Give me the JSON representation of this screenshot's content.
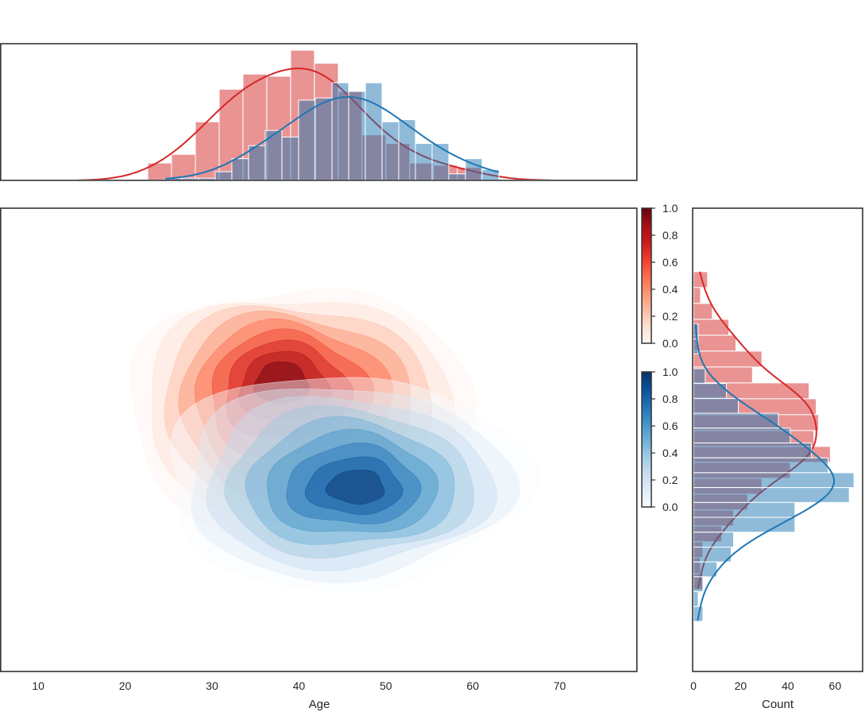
{
  "chart_data": {
    "type": "joint-kde-histogram",
    "main": {
      "xlabel": "Age",
      "ylabel": "",
      "xlim": [
        5.6,
        78.9
      ],
      "ylim": [
        0,
        100
      ],
      "xticks": [
        "10",
        "20",
        "30",
        "40",
        "50",
        "60",
        "70"
      ],
      "xtick_values": [
        10,
        20,
        30,
        40,
        50,
        60,
        70
      ],
      "kde": [
        {
          "name": "red group",
          "cmap": "Reds",
          "center": [
            40,
            55
          ],
          "sd": [
            7.5,
            13
          ],
          "levels": 9
        },
        {
          "name": "blue group",
          "cmap": "Blues",
          "center": [
            45,
            41
          ],
          "sd": [
            8,
            10.5
          ],
          "levels": 9
        }
      ]
    },
    "top_marginal": {
      "ylim": [
        0,
        63
      ],
      "series": [
        {
          "name": "red group",
          "color": "#d62728",
          "bin_start": 22.6,
          "bin_width": 2.74,
          "counts": [
            8,
            12,
            27,
            42,
            49,
            48,
            60,
            54,
            41,
            21,
            17,
            8,
            7,
            6
          ]
        },
        {
          "name": "blue group",
          "color": "#1f77b4",
          "bin_start": 24.6,
          "bin_width": 1.92,
          "counts": [
            1,
            1,
            1,
            4,
            10,
            16,
            23,
            20,
            37,
            38,
            45,
            41,
            45,
            27,
            28,
            17,
            17,
            3,
            10,
            5
          ]
        }
      ]
    },
    "right_marginal": {
      "xlabel": "Count",
      "xlim": [
        0,
        72
      ],
      "xticks": [
        "0",
        "20",
        "40",
        "60"
      ],
      "xtick_values": [
        0,
        20,
        40,
        60
      ],
      "series": [
        {
          "name": "red group",
          "color": "#d62728",
          "bin_top": 86.3,
          "bin_width": 3.43,
          "counts": [
            6,
            3,
            8,
            15,
            18,
            29,
            25,
            49,
            52,
            53,
            51,
            58,
            41,
            29,
            23,
            17,
            12,
            4,
            3,
            4
          ]
        },
        {
          "name": "blue group",
          "color": "#1f77b4",
          "bin_top": 75.0,
          "bin_width": 3.21,
          "counts": [
            2,
            2,
            0,
            5,
            14,
            19,
            36,
            41,
            50,
            57,
            68,
            66,
            43,
            43,
            17,
            16,
            10,
            4,
            2,
            4
          ]
        }
      ]
    },
    "colorbars": [
      {
        "name": "Reds",
        "range": [
          0,
          1
        ],
        "ticks": [
          "0.0",
          "0.2",
          "0.4",
          "0.6",
          "0.8",
          "1.0"
        ],
        "colors": [
          "#fff5f0",
          "#fee0d2",
          "#fcbba1",
          "#fc9272",
          "#fb6a4a",
          "#ef3b2c",
          "#cb181d",
          "#a50f15",
          "#67000d"
        ]
      },
      {
        "name": "Blues",
        "range": [
          0,
          1
        ],
        "ticks": [
          "0.0",
          "0.2",
          "0.4",
          "0.6",
          "0.8",
          "1.0"
        ],
        "colors": [
          "#f7fbff",
          "#deebf7",
          "#c6dbef",
          "#9ecae1",
          "#6baed6",
          "#4292c6",
          "#2171b5",
          "#08519c",
          "#08306b"
        ]
      }
    ]
  }
}
